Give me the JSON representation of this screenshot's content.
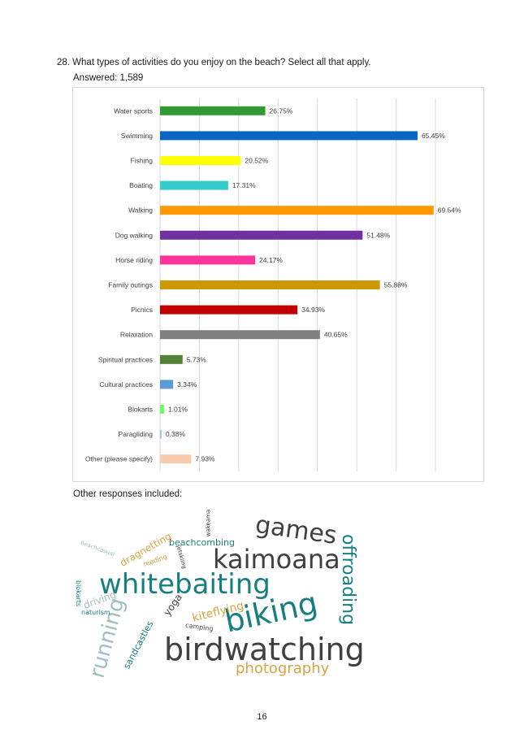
{
  "question": {
    "text": "28.  What types of activities do you enjoy on the beach?  Select all that apply.",
    "answered": "Answered: 1,589"
  },
  "chart_data": {
    "type": "bar",
    "orientation": "horizontal",
    "categories": [
      "Water sports",
      "Swimming",
      "Fishing",
      "Boating",
      "Walking",
      "Dog walking",
      "Horse riding",
      "Family outings",
      "Picnics",
      "Relaxation",
      "Spiritual practices",
      "Cultural practices",
      "Blokarts",
      "Paragliding",
      "Other (please specify)"
    ],
    "values": [
      26.75,
      65.45,
      20.52,
      17.31,
      69.54,
      51.48,
      24.17,
      55.88,
      34.93,
      40.65,
      5.73,
      3.34,
      1.01,
      0.38,
      7.93
    ],
    "data_labels": [
      "26.75%",
      "65.45%",
      "20.52%",
      "17.31%",
      "69.54%",
      "51.48%",
      "24.17%",
      "55.88%",
      "34.93%",
      "40.65%",
      "5.73%",
      "3.34%",
      "1.01%",
      "0.38%",
      "7.93%"
    ],
    "colors": [
      "#339933",
      "#0b66c3",
      "#ffff00",
      "#33cccc",
      "#ff9900",
      "#7030a0",
      "#ff3399",
      "#cc9900",
      "#c00000",
      "#808080",
      "#538135",
      "#5b9bd5",
      "#66ff66",
      "#9dc3e6",
      "#f8cbad"
    ],
    "xlim": [
      0,
      70
    ],
    "grid": true,
    "legend": "none"
  },
  "other_responses": {
    "label": "Other responses included:",
    "words": [
      {
        "text": "birdwatching",
        "color": "#404040"
      },
      {
        "text": "whitebaiting",
        "color": "#177e7e"
      },
      {
        "text": "kaimoana",
        "color": "#404040"
      },
      {
        "text": "biking",
        "color": "#177e7e"
      },
      {
        "text": "games",
        "color": "#404040"
      },
      {
        "text": "offroading",
        "color": "#177e7e"
      },
      {
        "text": "running",
        "color": "#9fbfbf"
      },
      {
        "text": "photography",
        "color": "#d9a441"
      },
      {
        "text": "beachcombing",
        "color": "#177e7e"
      },
      {
        "text": "dragnetting",
        "color": "#d9a441"
      },
      {
        "text": "kiteflying",
        "color": "#d9a441"
      },
      {
        "text": "sandcastles",
        "color": "#177e7e"
      },
      {
        "text": "yoga",
        "color": "#404040"
      },
      {
        "text": "driving",
        "color": "#9fbfbf"
      },
      {
        "text": "naturism",
        "color": "#177e7e"
      },
      {
        "text": "blokarts",
        "color": "#177e7e"
      },
      {
        "text": "reading",
        "color": "#d9a441"
      },
      {
        "text": "camping",
        "color": "#404040"
      },
      {
        "text": "beachcasual",
        "color": "#9fbfbf"
      },
      {
        "text": "jetskiing",
        "color": "#404040"
      },
      {
        "text": "wakeama",
        "color": "#404040"
      }
    ]
  },
  "page": {
    "number": "16"
  }
}
